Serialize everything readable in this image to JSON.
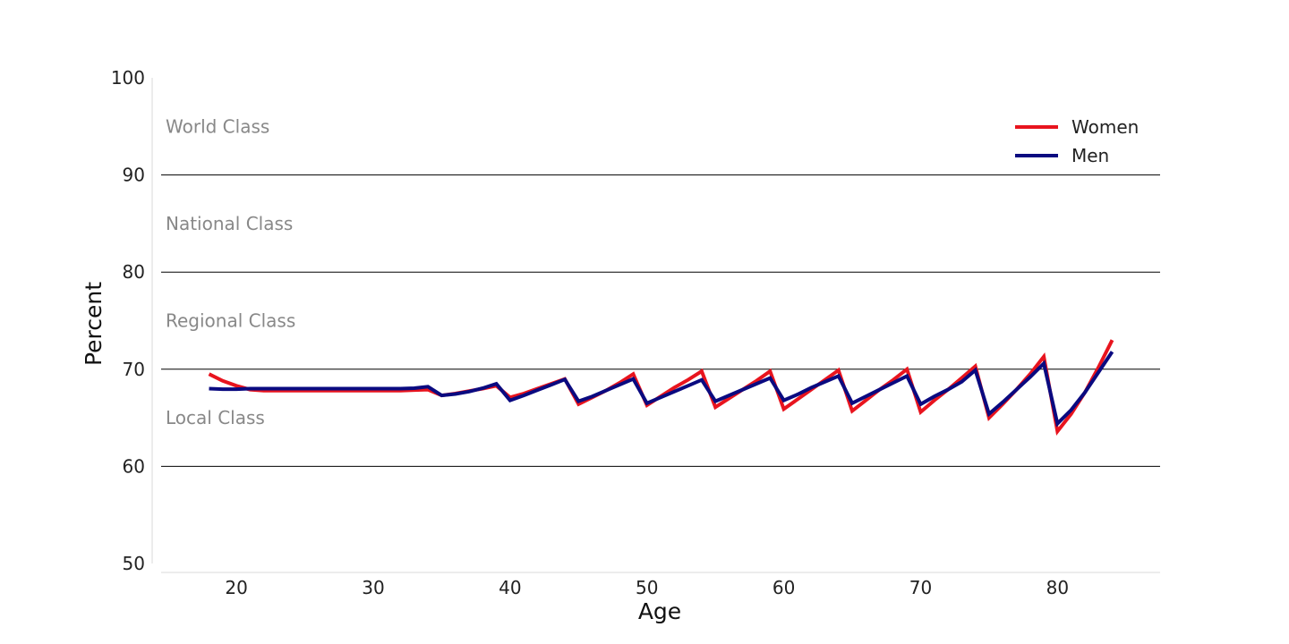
{
  "chart_data": {
    "type": "line",
    "xlabel": "Age",
    "ylabel": "Percent",
    "xlim": [
      14.5,
      87.5
    ],
    "ylim": [
      50,
      100
    ],
    "xticks": [
      20,
      30,
      40,
      50,
      60,
      70,
      80
    ],
    "yticks": [
      50,
      60,
      70,
      80,
      90,
      100
    ],
    "gridlines_y": [
      60,
      70,
      80,
      90
    ],
    "legend_position": "top-right",
    "bands": [
      {
        "label": "World Class",
        "y": 95
      },
      {
        "label": "National Class",
        "y": 85
      },
      {
        "label": "Regional Class",
        "y": 75
      },
      {
        "label": "Local Class",
        "y": 65
      }
    ],
    "series": [
      {
        "name": "Women",
        "color": "#e8141e",
        "x": [
          18,
          19,
          20,
          21,
          22,
          23,
          24,
          25,
          26,
          27,
          28,
          29,
          30,
          31,
          32,
          33,
          34,
          35,
          36,
          37,
          38,
          39,
          40,
          41,
          42,
          43,
          44,
          45,
          46,
          47,
          48,
          49,
          50,
          51,
          52,
          53,
          54,
          55,
          56,
          57,
          58,
          59,
          60,
          61,
          62,
          63,
          64,
          65,
          66,
          67,
          68,
          69,
          70,
          71,
          72,
          73,
          74,
          75,
          76,
          77,
          78,
          79,
          80,
          81,
          82,
          83,
          84
        ],
        "values": [
          69.5,
          68.8,
          68.3,
          67.9,
          67.8,
          67.8,
          67.8,
          67.8,
          67.8,
          67.8,
          67.8,
          67.8,
          67.8,
          67.8,
          67.8,
          67.85,
          67.9,
          67.3,
          67.5,
          67.75,
          68.0,
          68.3,
          67.1,
          67.5,
          68.0,
          68.5,
          69.0,
          66.4,
          67.1,
          67.8,
          68.6,
          69.5,
          66.3,
          67.2,
          68.1,
          68.9,
          69.8,
          66.1,
          67.0,
          67.9,
          68.8,
          69.8,
          65.9,
          66.9,
          67.9,
          68.9,
          69.9,
          65.7,
          66.8,
          67.9,
          68.9,
          70.0,
          65.6,
          66.8,
          67.9,
          69.1,
          70.3,
          65.0,
          66.4,
          67.9,
          69.5,
          71.3,
          63.6,
          65.4,
          67.6,
          70.2,
          73.0
        ]
      },
      {
        "name": "Men",
        "color": "#0a0a80",
        "x": [
          18,
          19,
          20,
          21,
          22,
          23,
          24,
          25,
          26,
          27,
          28,
          29,
          30,
          31,
          32,
          33,
          34,
          35,
          36,
          37,
          38,
          39,
          40,
          41,
          42,
          43,
          44,
          45,
          46,
          47,
          48,
          49,
          50,
          51,
          52,
          53,
          54,
          55,
          56,
          57,
          58,
          59,
          60,
          61,
          62,
          63,
          64,
          65,
          66,
          67,
          68,
          69,
          70,
          71,
          72,
          73,
          74,
          75,
          76,
          77,
          78,
          79,
          80,
          81,
          82,
          83,
          84
        ],
        "values": [
          68.0,
          67.95,
          67.95,
          68.0,
          68.0,
          68.0,
          68.0,
          68.0,
          68.0,
          68.0,
          68.0,
          68.0,
          68.0,
          68.0,
          68.0,
          68.05,
          68.2,
          67.3,
          67.45,
          67.7,
          68.05,
          68.5,
          66.8,
          67.3,
          67.85,
          68.4,
          68.95,
          66.7,
          67.2,
          67.8,
          68.4,
          69.0,
          66.5,
          67.1,
          67.7,
          68.3,
          68.9,
          66.7,
          67.3,
          67.9,
          68.5,
          69.1,
          66.8,
          67.4,
          68.1,
          68.7,
          69.3,
          66.5,
          67.2,
          67.9,
          68.6,
          69.3,
          66.4,
          67.2,
          67.9,
          68.7,
          69.9,
          65.4,
          66.6,
          67.9,
          69.2,
          70.6,
          64.4,
          65.8,
          67.6,
          69.7,
          71.8
        ]
      }
    ]
  }
}
